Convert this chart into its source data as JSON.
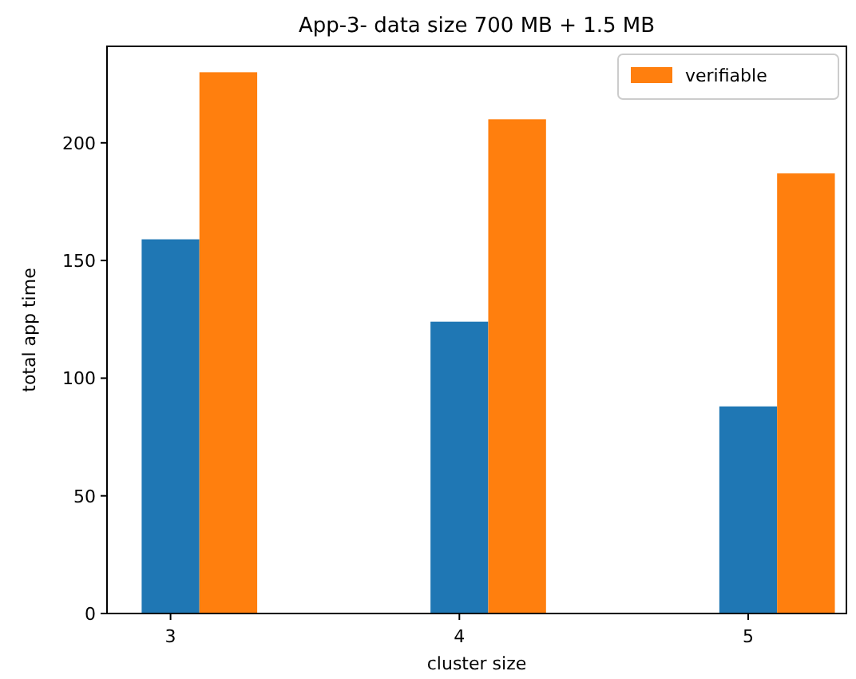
{
  "chart_data": {
    "type": "bar",
    "title": "App-3- data size 700 MB + 1.5 MB",
    "xlabel": "cluster size",
    "ylabel": "total app time",
    "x": [
      3,
      4,
      5
    ],
    "xlim": [
      2.78,
      5.34
    ],
    "xticks": [
      3,
      4,
      5
    ],
    "ylim": [
      0,
      241
    ],
    "yticks": [
      0,
      50,
      100,
      150,
      200
    ],
    "legend": "top right",
    "grid": false,
    "series": [
      {
        "color": "#1f77b4",
        "values": [
          159,
          124,
          88
        ]
      },
      {
        "name": "verifiable",
        "color": "#ff7f0e",
        "values": [
          230,
          210,
          187
        ]
      }
    ]
  }
}
